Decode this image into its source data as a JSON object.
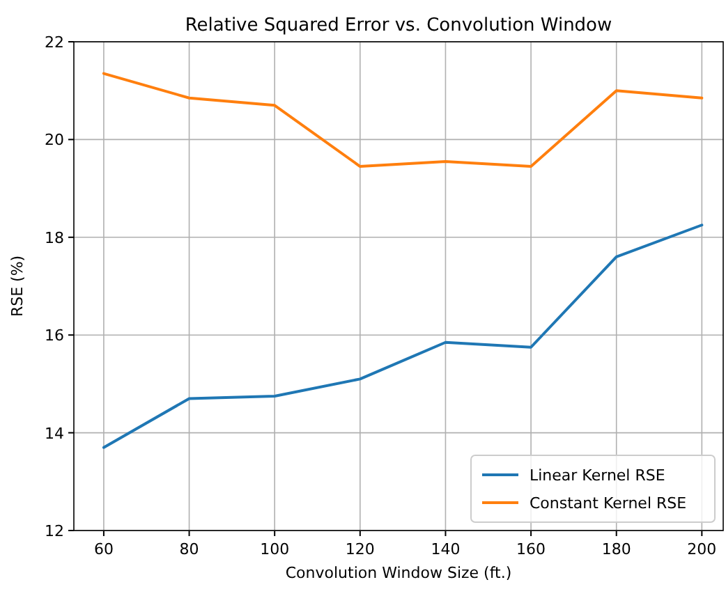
{
  "chart_data": {
    "type": "line",
    "title": "Relative Squared Error vs. Convolution Window",
    "xlabel": "Convolution Window Size (ft.)",
    "ylabel": "RSE (%)",
    "x": [
      60,
      80,
      100,
      120,
      140,
      160,
      180,
      200
    ],
    "series": [
      {
        "name": "Linear Kernel RSE",
        "color": "#1f77b4",
        "values": [
          13.7,
          14.7,
          14.75,
          15.1,
          15.85,
          15.75,
          17.6,
          18.25
        ]
      },
      {
        "name": "Constant Kernel RSE",
        "color": "#ff7f0e",
        "values": [
          21.35,
          20.85,
          20.7,
          19.45,
          19.55,
          19.45,
          21.0,
          20.85
        ]
      }
    ],
    "xlim": [
      53,
      205
    ],
    "xticks": [
      60,
      80,
      100,
      120,
      140,
      160,
      180,
      200
    ],
    "ylim": [
      12,
      22
    ],
    "yticks": [
      12,
      14,
      16,
      18,
      20,
      22
    ],
    "grid": true,
    "legend": "bottom right",
    "line_style": "solid",
    "marker": "none"
  }
}
